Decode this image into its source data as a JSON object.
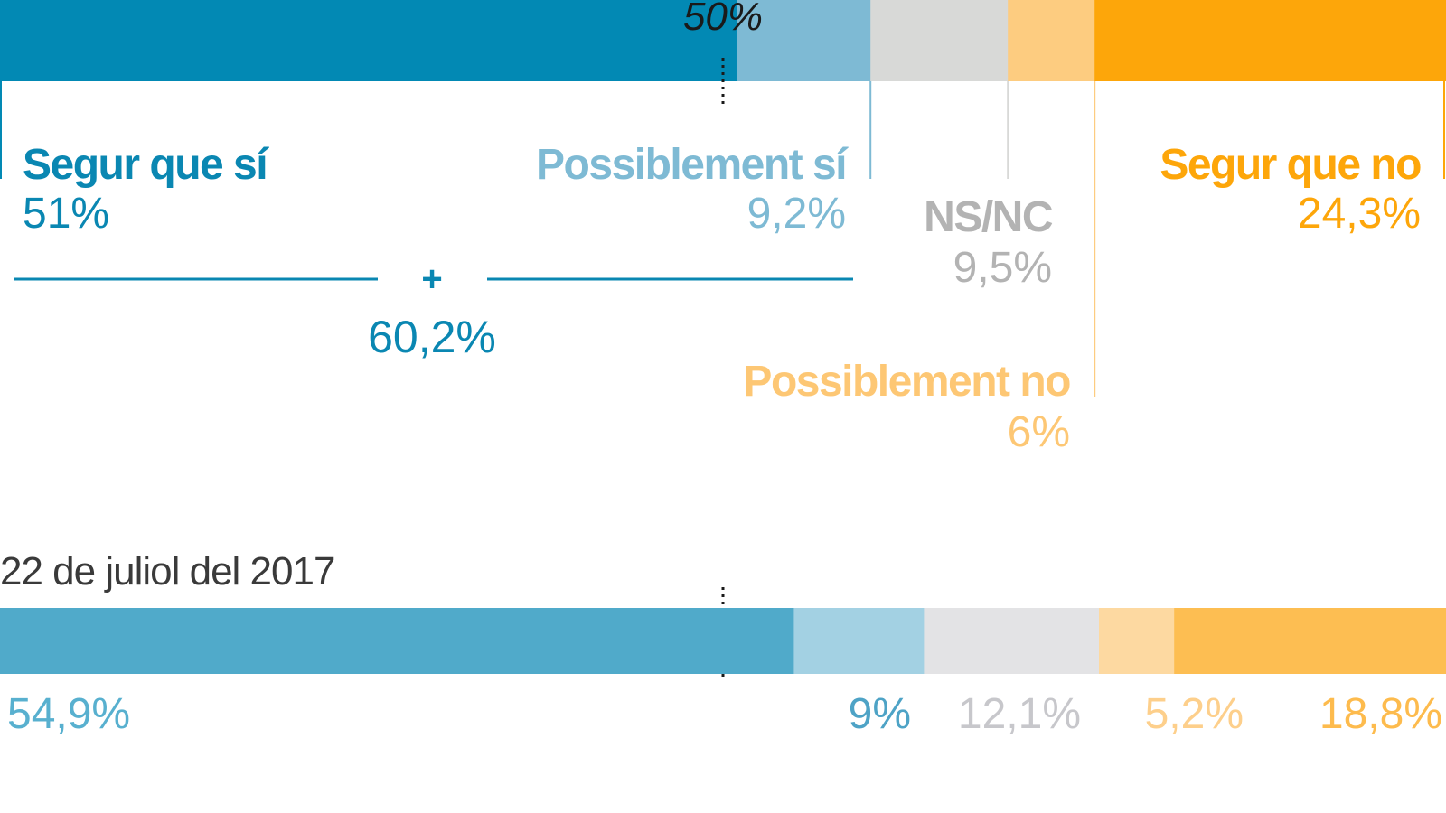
{
  "chart_data": [
    {
      "type": "bar",
      "orientation": "horizontal-stacked-100",
      "reference_line": {
        "value": 50,
        "label": "50%"
      },
      "categories": [
        "Segur que sí",
        "Possiblement sí",
        "NS/NC",
        "Possiblement no",
        "Segur que no"
      ],
      "values": [
        51,
        9.2,
        9.5,
        6,
        24.3
      ],
      "value_labels": [
        "51%",
        "9,2%",
        "9,5%",
        "6%",
        "24,3%"
      ],
      "colors": [
        "#0289b4",
        "#7ebad4",
        "#d8d9d7",
        "#fdcc80",
        "#fda60a"
      ],
      "combined": {
        "label": "60,2%",
        "sum_symbol": "+",
        "value": 60.2
      }
    },
    {
      "type": "bar",
      "orientation": "horizontal-stacked-100",
      "title": "22 de juliol del 2017",
      "reference_line": {
        "value": 50
      },
      "values": [
        54.9,
        9,
        12.1,
        5.2,
        18.8
      ],
      "value_labels": [
        "54,9%",
        "9%",
        "12,1%",
        "5,2%",
        "18,8%"
      ],
      "colors": [
        "#50aaca",
        "#a3d1e3",
        "#e3e3e5",
        "#fdd9a1",
        "#fdbe52"
      ],
      "label_colors": [
        "#58b0cf",
        "#4ea3c6",
        "#c7c7cb",
        "#fdcf8b",
        "#fdbb4d"
      ]
    }
  ]
}
